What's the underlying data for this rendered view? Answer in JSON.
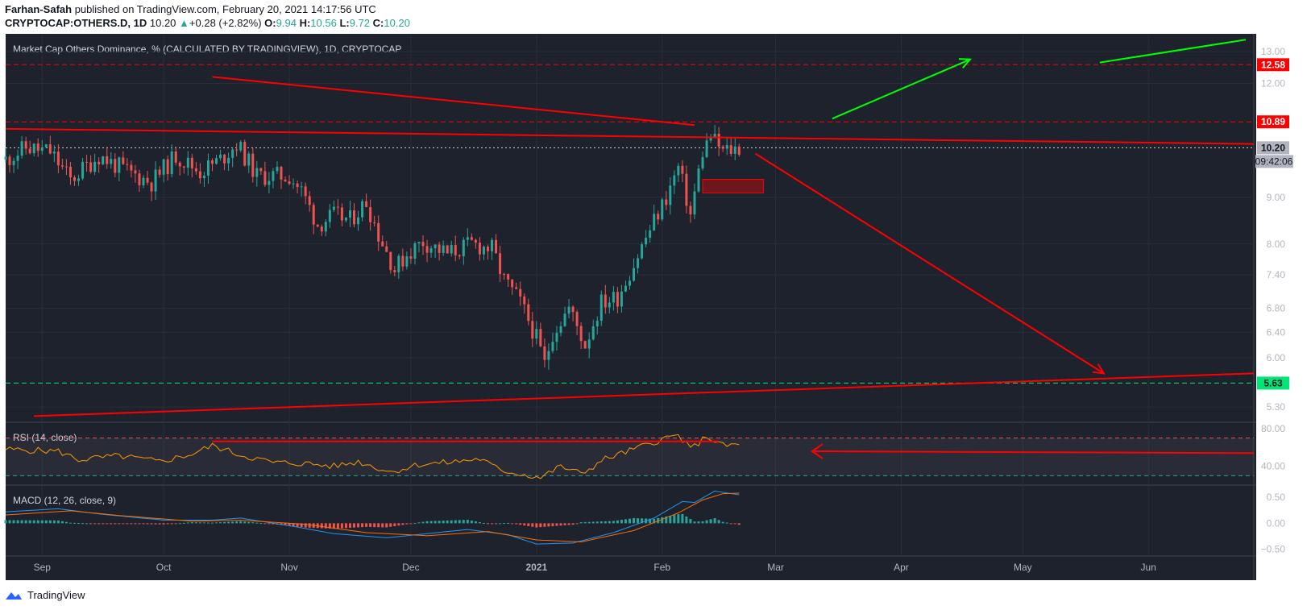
{
  "header": {
    "author": "Farhan-Safah",
    "published_text": "published on TradingView.com, February 20, 2021 14:17:56 UTC",
    "symbol": "CRYPTOCAP:OTHERS.D, 1D",
    "last": "10.20",
    "change": "+0.28 (+2.82%)",
    "o_label": "O:",
    "o": "9.94",
    "h_label": "H:",
    "h": "10.56",
    "l_label": "L:",
    "l": "9.72",
    "c_label": "C:",
    "c": "10.20"
  },
  "footer": {
    "brand": "TradingView"
  },
  "colors": {
    "background": "#1e222d",
    "up": "#26a69a",
    "down": "#ef5350",
    "drawing_red": "#ff0000",
    "drawing_green": "#00ff00",
    "rsi": "#ff9800",
    "macd": "#2196f3",
    "signal": "#ff6d00"
  },
  "chart_data": [
    {
      "type": "candlestick",
      "title": "Market Cap Others Dominance, % (CALCULATED BY TRADINGVIEW), 1D, CRYPTOCAP",
      "scale": "log",
      "ylim": [
        5.1,
        13.6
      ],
      "y_ticks": [
        "13.00",
        "12.00",
        "9.00",
        "8.00",
        "7.40",
        "6.80",
        "6.40",
        "6.00",
        "5.30"
      ],
      "x_ticks": [
        "Sep",
        "Oct",
        "Nov",
        "Dec",
        "2021",
        "Feb",
        "Mar",
        "Apr",
        "May",
        "Jun"
      ],
      "x_start": "2020-08-23",
      "x_end": "2021-06-27",
      "price_labels": {
        "resistance_high": "12.58",
        "resistance": "10.89",
        "last": "10.20",
        "countdown": "09:42:06",
        "support": "5.63"
      },
      "close_path": [
        [
          "2020-08-23",
          9.9
        ],
        [
          "2020-08-28",
          10.2
        ],
        [
          "2020-09-03",
          10.1
        ],
        [
          "2020-09-08",
          9.4
        ],
        [
          "2020-09-15",
          10.0
        ],
        [
          "2020-09-22",
          9.6
        ],
        [
          "2020-09-28",
          9.35
        ],
        [
          "2020-10-04",
          10.0
        ],
        [
          "2020-10-10",
          9.6
        ],
        [
          "2020-10-15",
          9.9
        ],
        [
          "2020-10-19",
          10.3
        ],
        [
          "2020-10-24",
          9.5
        ],
        [
          "2020-11-01",
          9.5
        ],
        [
          "2020-11-04",
          9.15
        ],
        [
          "2020-11-08",
          8.4
        ],
        [
          "2020-11-12",
          8.6
        ],
        [
          "2020-11-16",
          8.5
        ],
        [
          "2020-11-20",
          8.9
        ],
        [
          "2020-11-23",
          8.2
        ],
        [
          "2020-11-27",
          7.5
        ],
        [
          "2020-11-30",
          7.8
        ],
        [
          "2020-12-04",
          8.05
        ],
        [
          "2020-12-10",
          7.8
        ],
        [
          "2020-12-16",
          8.0
        ],
        [
          "2020-12-21",
          7.9
        ],
        [
          "2020-12-24",
          7.3
        ],
        [
          "2020-12-28",
          6.9
        ],
        [
          "2021-01-01",
          6.3
        ],
        [
          "2021-01-03",
          5.9
        ],
        [
          "2021-01-05",
          6.4
        ],
        [
          "2021-01-09",
          6.8
        ],
        [
          "2021-01-13",
          6.2
        ],
        [
          "2021-01-17",
          6.9
        ],
        [
          "2021-01-21",
          7.0
        ],
        [
          "2021-01-25",
          7.6
        ],
        [
          "2021-01-29",
          8.3
        ],
        [
          "2021-02-02",
          9.0
        ],
        [
          "2021-02-05",
          9.7
        ],
        [
          "2021-02-08",
          8.6
        ],
        [
          "2021-02-11",
          10.1
        ],
        [
          "2021-02-13",
          10.5
        ],
        [
          "2021-02-16",
          10.1
        ],
        [
          "2021-02-20",
          10.2
        ]
      ],
      "drawings": [
        {
          "kind": "line",
          "color": "red",
          "from": [
            "2020-10-13",
            12.2
          ],
          "to": [
            "2021-02-09",
            10.8
          ]
        },
        {
          "kind": "line",
          "color": "red",
          "from": [
            "2020-08-23",
            10.7
          ],
          "to": [
            "2021-06-27",
            10.3
          ]
        },
        {
          "kind": "line",
          "color": "red",
          "from": [
            "2020-08-30",
            5.18
          ],
          "to": [
            "2021-06-27",
            5.77
          ]
        },
        {
          "kind": "arrow",
          "color": "red",
          "from": [
            "2021-02-24",
            10.05
          ],
          "to": [
            "2021-05-21",
            5.77
          ]
        },
        {
          "kind": "arrow",
          "color": "green",
          "from": [
            "2021-03-15",
            10.98
          ],
          "to": [
            "2021-04-18",
            12.75
          ]
        },
        {
          "kind": "line",
          "color": "green",
          "from": [
            "2021-05-20",
            12.65
          ],
          "to": [
            "2021-06-25",
            13.4
          ]
        },
        {
          "kind": "rect",
          "color": "red",
          "from": [
            "2021-02-11",
            9.42
          ],
          "to": [
            "2021-02-26",
            9.1
          ]
        }
      ],
      "hlines": [
        {
          "value": 12.58,
          "color": "red",
          "style": "dashed"
        },
        {
          "value": 10.89,
          "color": "red",
          "style": "dashed"
        },
        {
          "value": 10.2,
          "color": "white",
          "style": "dotted"
        },
        {
          "value": 5.63,
          "color": "green",
          "style": "dashed"
        }
      ]
    },
    {
      "type": "line",
      "title": "RSI (14, close)",
      "ylim": [
        20,
        86
      ],
      "y_ticks": [
        "80.00",
        "40.00"
      ],
      "levels": [
        70,
        30
      ],
      "series": [
        {
          "values": [
            [
              "2020-08-23",
              58
            ],
            [
              "2020-09-05",
              56
            ],
            [
              "2020-09-10",
              47
            ],
            [
              "2020-09-20",
              51
            ],
            [
              "2020-09-30",
              45
            ],
            [
              "2020-10-08",
              53
            ],
            [
              "2020-10-13",
              62
            ],
            [
              "2020-10-20",
              52
            ],
            [
              "2020-10-28",
              44
            ],
            [
              "2020-11-05",
              43
            ],
            [
              "2020-11-12",
              40
            ],
            [
              "2020-11-18",
              45
            ],
            [
              "2020-11-26",
              34
            ],
            [
              "2020-12-03",
              42
            ],
            [
              "2020-12-10",
              44
            ],
            [
              "2020-12-18",
              48
            ],
            [
              "2020-12-23",
              36
            ],
            [
              "2021-01-02",
              28
            ],
            [
              "2021-01-07",
              40
            ],
            [
              "2021-01-12",
              32
            ],
            [
              "2021-01-18",
              48
            ],
            [
              "2021-01-25",
              58
            ],
            [
              "2021-02-01",
              69
            ],
            [
              "2021-02-05",
              73
            ],
            [
              "2021-02-08",
              58
            ],
            [
              "2021-02-12",
              72
            ],
            [
              "2021-02-16",
              62
            ],
            [
              "2021-02-20",
              63
            ]
          ]
        }
      ],
      "drawings": [
        {
          "kind": "line",
          "color": "red",
          "from": [
            "2020-10-13",
            66.5
          ],
          "to": [
            "2021-02-15",
            66.5
          ]
        },
        {
          "kind": "arrow",
          "color": "red",
          "from": [
            "2021-06-27",
            54
          ],
          "to": [
            "2021-03-10",
            56
          ]
        }
      ]
    },
    {
      "type": "line",
      "title": "MACD (12, 26, close, 9)",
      "ylim": [
        -0.6,
        0.72
      ],
      "y_ticks": [
        "0.50",
        "0.00",
        "−0.50"
      ],
      "series": [
        {
          "values": [
            [
              "2020-08-23",
              0.22
            ],
            [
              "2020-09-05",
              0.28
            ],
            [
              "2020-09-15",
              0.18
            ],
            [
              "2020-10-01",
              0.06
            ],
            [
              "2020-10-13",
              0.06
            ],
            [
              "2020-10-20",
              0.1
            ],
            [
              "2020-11-02",
              -0.06
            ],
            [
              "2020-11-12",
              -0.2
            ],
            [
              "2020-11-25",
              -0.28
            ],
            [
              "2020-12-05",
              -0.2
            ],
            [
              "2020-12-15",
              -0.12
            ],
            [
              "2020-12-25",
              -0.22
            ],
            [
              "2021-01-01",
              -0.4
            ],
            [
              "2021-01-10",
              -0.38
            ],
            [
              "2021-01-20",
              -0.18
            ],
            [
              "2021-01-30",
              0.1
            ],
            [
              "2021-02-06",
              0.42
            ],
            [
              "2021-02-09",
              0.4
            ],
            [
              "2021-02-14",
              0.62
            ],
            [
              "2021-02-20",
              0.55
            ]
          ]
        },
        {
          "values": [
            [
              "2020-08-23",
              0.16
            ],
            [
              "2020-09-08",
              0.24
            ],
            [
              "2020-09-20",
              0.15
            ],
            [
              "2020-10-08",
              0.04
            ],
            [
              "2020-10-20",
              0.06
            ],
            [
              "2020-11-05",
              -0.02
            ],
            [
              "2020-11-20",
              -0.18
            ],
            [
              "2020-12-05",
              -0.24
            ],
            [
              "2020-12-20",
              -0.16
            ],
            [
              "2021-01-01",
              -0.32
            ],
            [
              "2021-01-12",
              -0.36
            ],
            [
              "2021-01-25",
              -0.14
            ],
            [
              "2021-02-05",
              0.2
            ],
            [
              "2021-02-11",
              0.45
            ],
            [
              "2021-02-16",
              0.57
            ],
            [
              "2021-02-20",
              0.58
            ]
          ]
        }
      ]
    }
  ]
}
